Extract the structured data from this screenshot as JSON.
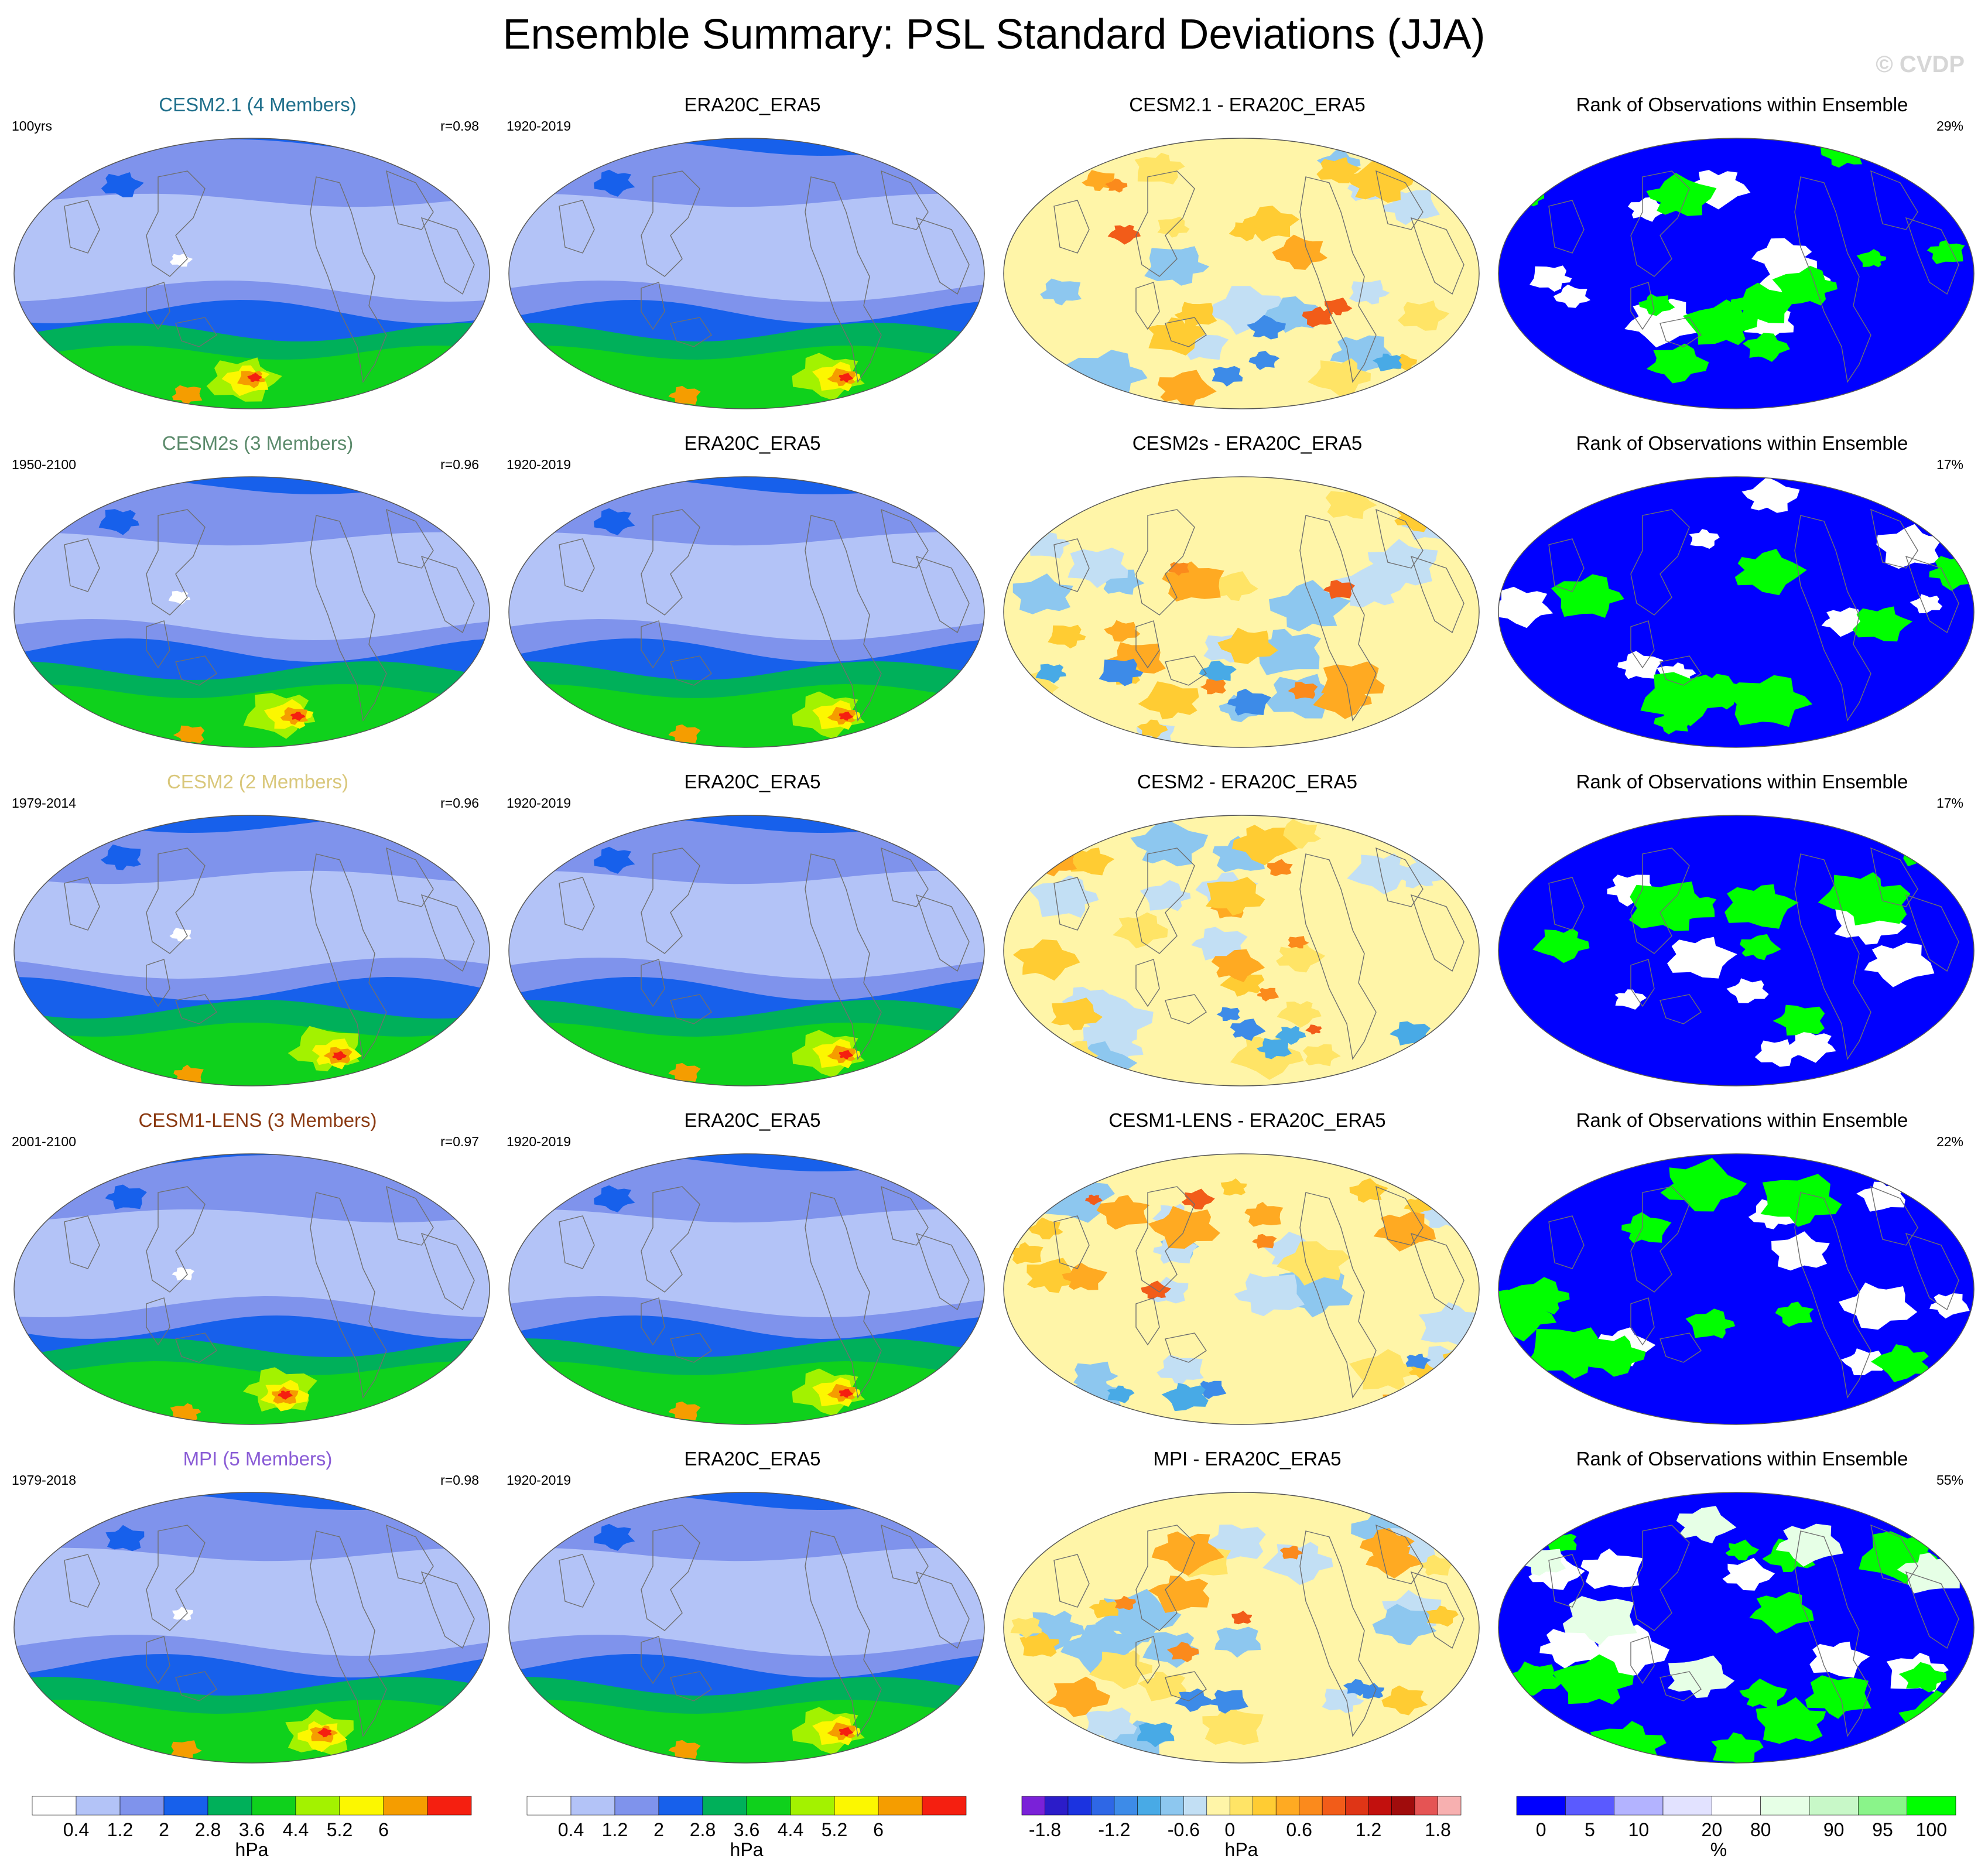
{
  "page": {
    "title": "Ensemble Summary: PSL Standard Deviations (JJA)",
    "watermark": "© CVDP"
  },
  "colors": {
    "model_titles": [
      "#1f6f8b",
      "#5b8a6b",
      "#d9c77a",
      "#8b3a12",
      "#8a5cd6"
    ],
    "sd_scale": [
      "#ffffff",
      "#b3c3f7",
      "#7f93ec",
      "#1760eb",
      "#00b05a",
      "#0fd11c",
      "#a3f200",
      "#fcf700",
      "#f59d00",
      "#f51f10"
    ],
    "diff_scale": [
      "#7a21d8",
      "#2b1cc9",
      "#1b33e0",
      "#2e67e6",
      "#3d8be8",
      "#48aae6",
      "#8dc7ef",
      "#c2dff4",
      "#fff5a8",
      "#ffe466",
      "#ffcc33",
      "#ffaa22",
      "#fb8a1c",
      "#f25c19",
      "#df3516",
      "#c2100d",
      "#a00c0c",
      "#e55454",
      "#f7b0b0"
    ],
    "rank_scale": [
      "#0000ff",
      "#5a5aff",
      "#b3b3ff",
      "#e2e2ff",
      "#ffffff",
      "#e6ffe6",
      "#c8f8c8",
      "#8af48a",
      "#00ff00"
    ]
  },
  "rows": [
    {
      "model": {
        "title": "CESM2.1 (4 Members)",
        "period": "100yrs",
        "r": "r=0.98"
      },
      "obs": {
        "title": "ERA20C_ERA5",
        "period": "1920-2019"
      },
      "diff": {
        "title": "CESM2.1 - ERA20C_ERA5"
      },
      "rank": {
        "title": "Rank of Observations within Ensemble",
        "pct": "29%",
        "pct_value": 29
      }
    },
    {
      "model": {
        "title": "CESM2s (3 Members)",
        "period": "1950-2100",
        "r": "r=0.96"
      },
      "obs": {
        "title": "ERA20C_ERA5",
        "period": "1920-2019"
      },
      "diff": {
        "title": "CESM2s - ERA20C_ERA5"
      },
      "rank": {
        "title": "Rank of Observations within Ensemble",
        "pct": "17%",
        "pct_value": 17
      }
    },
    {
      "model": {
        "title": "CESM2 (2 Members)",
        "period": "1979-2014",
        "r": "r=0.96"
      },
      "obs": {
        "title": "ERA20C_ERA5",
        "period": "1920-2019"
      },
      "diff": {
        "title": "CESM2 - ERA20C_ERA5"
      },
      "rank": {
        "title": "Rank of Observations within Ensemble",
        "pct": "17%",
        "pct_value": 17
      }
    },
    {
      "model": {
        "title": "CESM1-LENS (3 Members)",
        "period": "2001-2100",
        "r": "r=0.97"
      },
      "obs": {
        "title": "ERA20C_ERA5",
        "period": "1920-2019"
      },
      "diff": {
        "title": "CESM1-LENS - ERA20C_ERA5"
      },
      "rank": {
        "title": "Rank of Observations within Ensemble",
        "pct": "22%",
        "pct_value": 22
      }
    },
    {
      "model": {
        "title": "MPI (5 Members)",
        "period": "1979-2018",
        "r": "r=0.98"
      },
      "obs": {
        "title": "ERA20C_ERA5",
        "period": "1920-2019"
      },
      "diff": {
        "title": "MPI - ERA20C_ERA5"
      },
      "rank": {
        "title": "Rank of Observations within Ensemble",
        "pct": "55%",
        "pct_value": 55
      }
    }
  ],
  "colorbars": [
    {
      "kind": "sd",
      "unit": "hPa",
      "ticks": [
        "0.4",
        "1.2",
        "2",
        "2.8",
        "3.6",
        "4.4",
        "5.2",
        "6"
      ]
    },
    {
      "kind": "sd",
      "unit": "hPa",
      "ticks": [
        "0.4",
        "1.2",
        "2",
        "2.8",
        "3.6",
        "4.4",
        "5.2",
        "6"
      ]
    },
    {
      "kind": "diff",
      "unit": "hPa",
      "ticks": [
        "-1.8",
        "-1.2",
        "-0.6",
        "0",
        "0.6",
        "1.2",
        "1.8"
      ]
    },
    {
      "kind": "rank",
      "unit": "%",
      "ticks": [
        "0",
        "5",
        "10",
        "20",
        "80",
        "90",
        "95",
        "100"
      ]
    }
  ],
  "chart_data": {
    "type": "heatmap",
    "title": "Ensemble Summary: PSL Standard Deviations (JJA)",
    "variable": "PSL standard deviation",
    "season": "JJA",
    "unit": "hPa",
    "sd_levels": [
      0.4,
      0.8,
      1.2,
      1.6,
      2.0,
      2.4,
      2.8,
      3.2,
      3.6,
      4.0,
      4.4,
      4.8,
      5.2,
      5.6,
      6.0
    ],
    "diff_levels": [
      -1.8,
      -1.6,
      -1.4,
      -1.2,
      -1.0,
      -0.8,
      -0.6,
      -0.4,
      -0.2,
      0,
      0.2,
      0.4,
      0.6,
      0.8,
      1.0,
      1.2,
      1.4,
      1.6,
      1.8
    ],
    "rank_levels": [
      0,
      5,
      10,
      20,
      80,
      90,
      95,
      100
    ],
    "pattern_correlations": [
      {
        "model": "CESM2.1",
        "r": 0.98
      },
      {
        "model": "CESM2s",
        "r": 0.96
      },
      {
        "model": "CESM2",
        "r": 0.96
      },
      {
        "model": "CESM1-LENS",
        "r": 0.97
      },
      {
        "model": "MPI",
        "r": 0.98
      }
    ],
    "rank_percent": [
      {
        "model": "CESM2.1",
        "value": 29
      },
      {
        "model": "CESM2s",
        "value": 17
      },
      {
        "model": "CESM2",
        "value": 17
      },
      {
        "model": "CESM1-LENS",
        "value": 22
      },
      {
        "model": "MPI",
        "value": 55
      }
    ]
  }
}
